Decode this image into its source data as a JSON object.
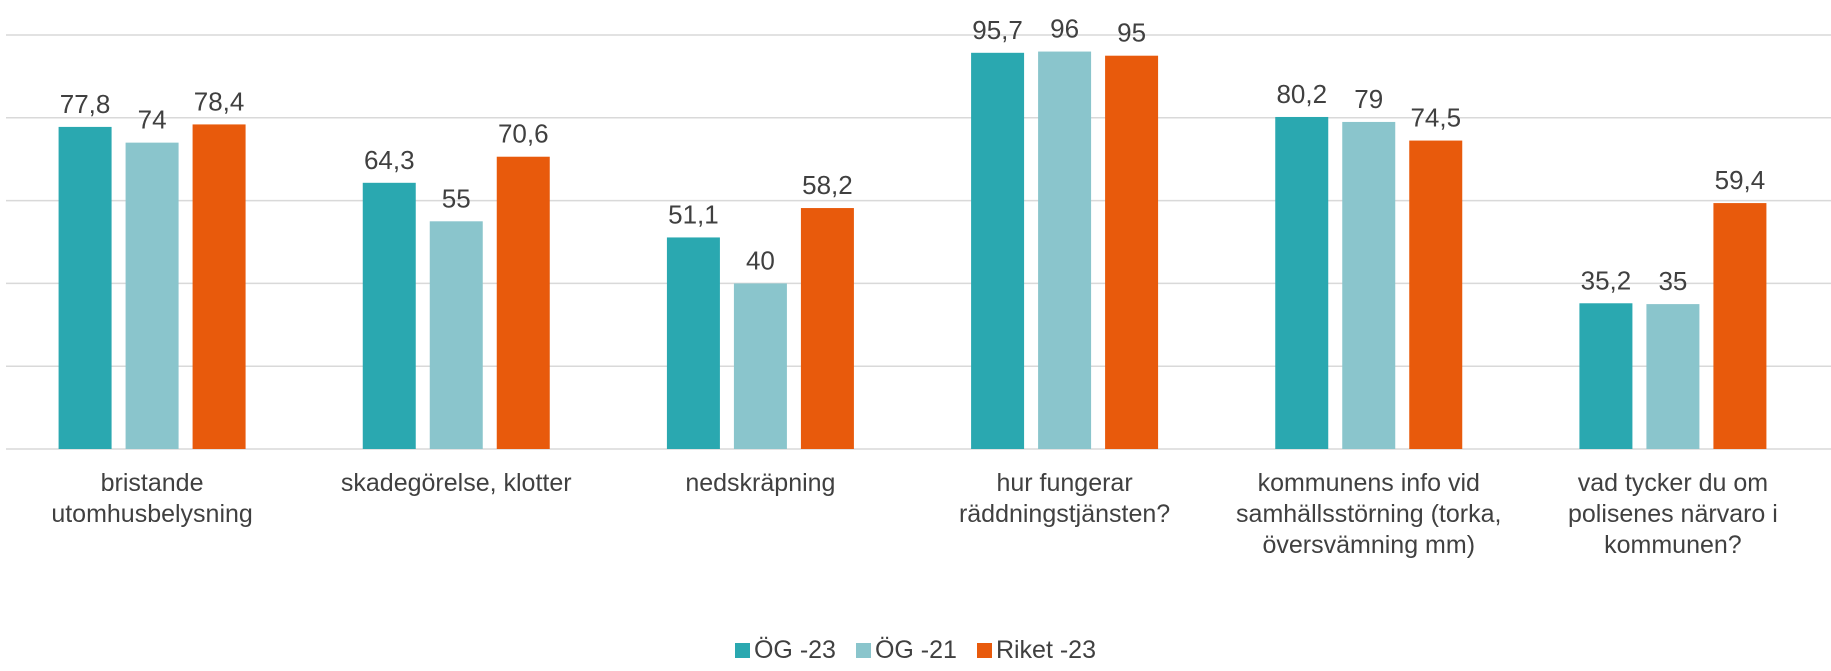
{
  "chart_data": {
    "type": "bar",
    "categories": [
      "bristande utomhusbelysning",
      "skadegörelse, klotter",
      "nedskräpning",
      "hur fungerar räddningstjänsten?",
      "kommunens info vid samhällsstörning (torka, översvämning mm)",
      "vad tycker du om polisenes närvaro i kommunen?"
    ],
    "series": [
      {
        "name": "ÖG -23",
        "color": "#2aa8b0",
        "values": [
          77.8,
          64.3,
          51.1,
          95.7,
          80.2,
          35.2
        ],
        "value_labels": [
          "77,8",
          "64,3",
          "51,1",
          "95,7",
          "80,2",
          "35,2"
        ]
      },
      {
        "name": "ÖG -21",
        "color": "#8ac5cc",
        "values": [
          74,
          55,
          40,
          96,
          79,
          35
        ],
        "value_labels": [
          "74",
          "55",
          "40",
          "96",
          "79",
          "35"
        ]
      },
      {
        "name": "Riket -23",
        "color": "#e85a0c",
        "values": [
          78.4,
          70.6,
          58.2,
          95,
          74.5,
          59.4
        ],
        "value_labels": [
          "78,4",
          "70,6",
          "58,2",
          "95",
          "74,5",
          "59,4"
        ]
      }
    ],
    "ylim": [
      0,
      100
    ],
    "yticks": [
      0,
      20,
      40,
      60,
      80,
      100
    ],
    "grid": true,
    "legend": "bottom"
  }
}
